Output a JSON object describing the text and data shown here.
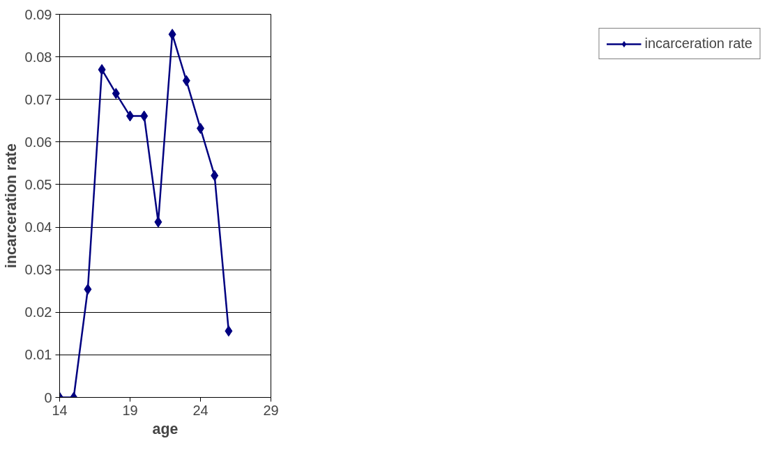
{
  "chart_data": {
    "type": "line",
    "xlabel": "age",
    "ylabel": "incarceration rate",
    "x": [
      14,
      15,
      16,
      17,
      18,
      19,
      20,
      21,
      22,
      23,
      24,
      25,
      26
    ],
    "series": [
      {
        "name": "incarceration rate",
        "color": "#000080",
        "values": [
          0,
          0,
          0.0254,
          0.077,
          0.0714,
          0.0661,
          0.0661,
          0.0412,
          0.0853,
          0.0744,
          0.0632,
          0.0521,
          0.0156
        ]
      }
    ],
    "xlim": [
      14,
      29
    ],
    "xticks": [
      14,
      19,
      24,
      29
    ],
    "ylim": [
      0,
      0.09
    ],
    "yticks": [
      0,
      0.01,
      0.02,
      0.03,
      0.04,
      0.05,
      0.06,
      0.07,
      0.08,
      0.09
    ],
    "grid": "y",
    "legend": "right",
    "marker": "diamond",
    "line_style": "solid"
  }
}
